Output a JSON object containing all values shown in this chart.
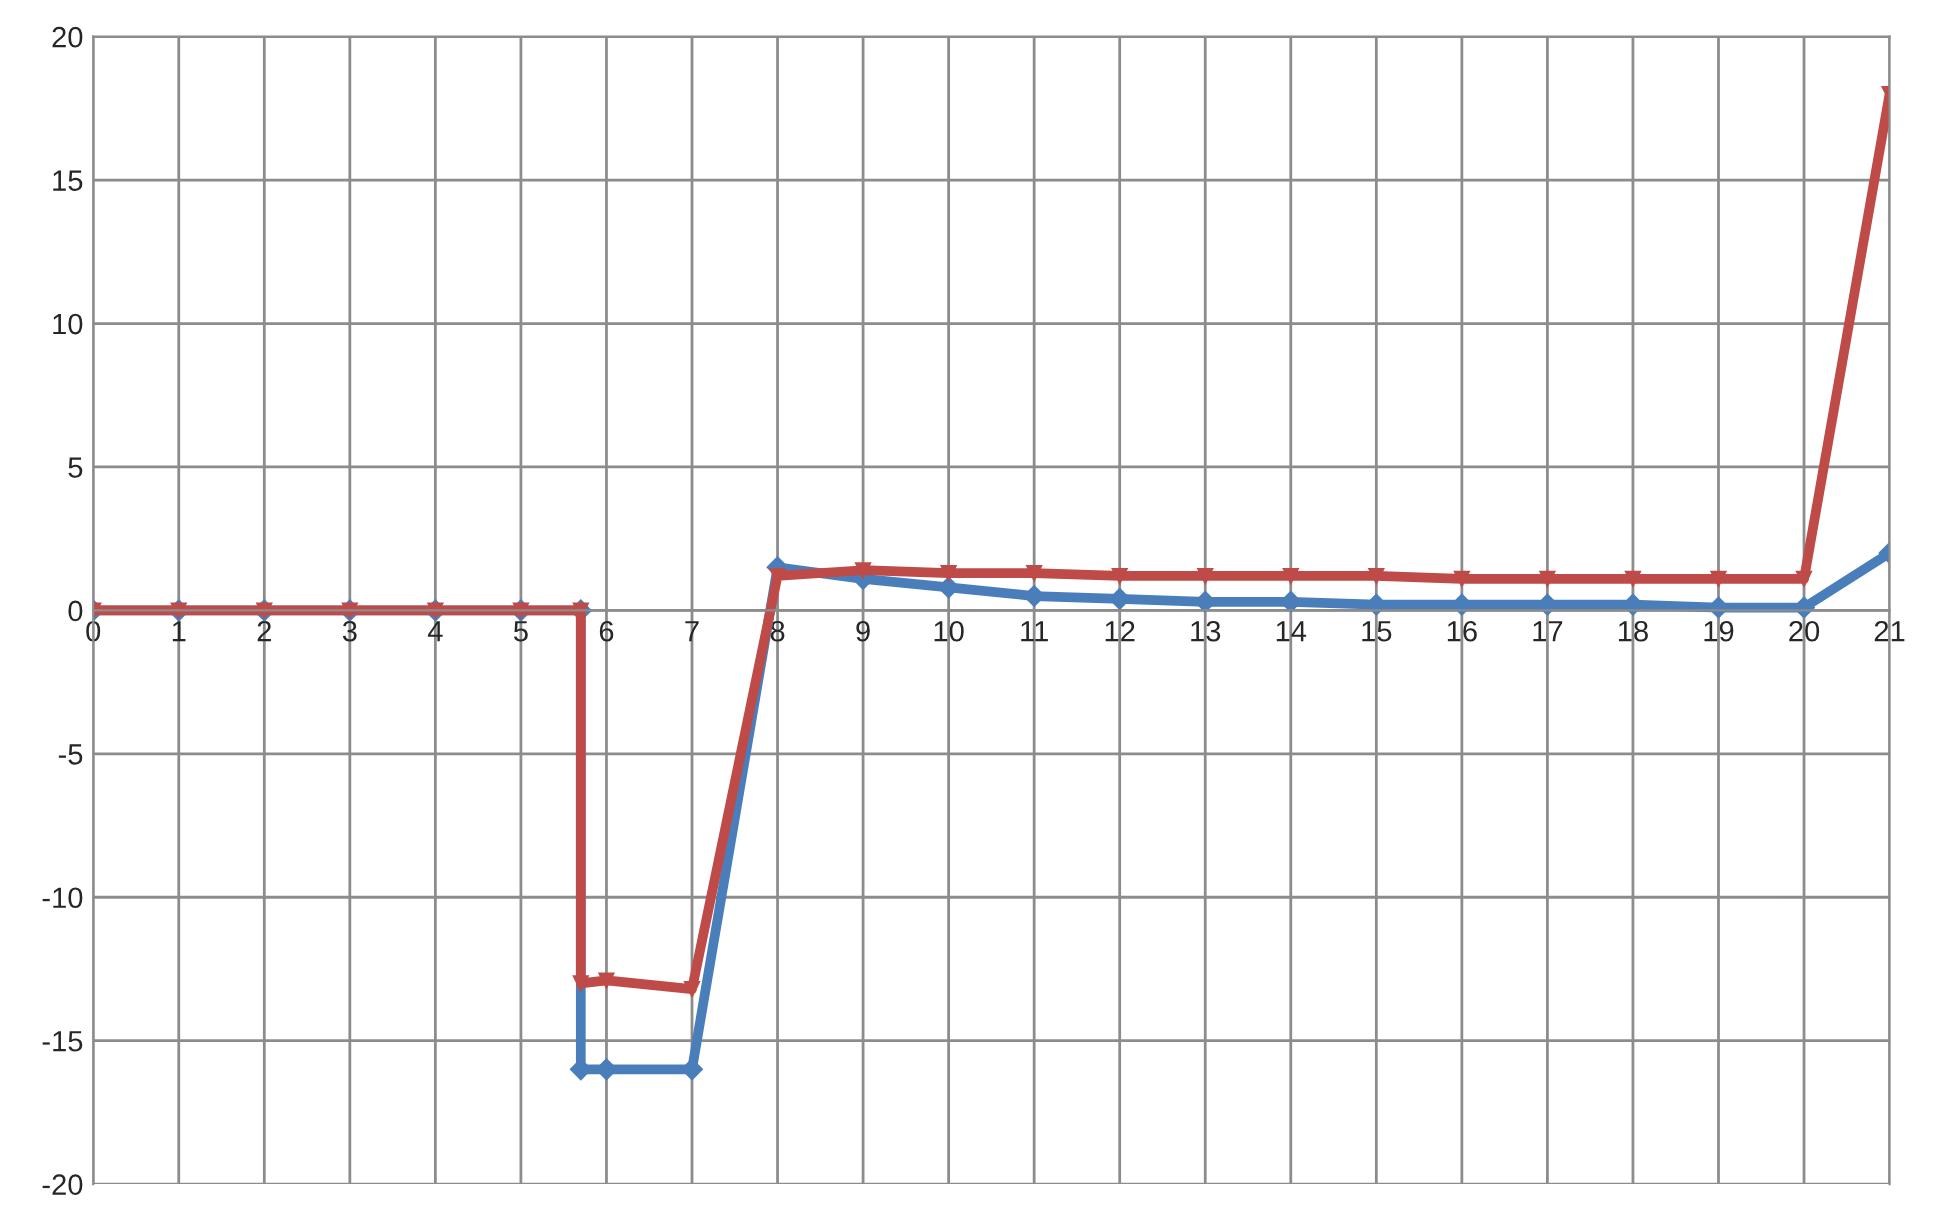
{
  "chart_data": {
    "type": "line",
    "xlim": [
      0,
      21
    ],
    "xticks": [
      0,
      1,
      2,
      3,
      4,
      5,
      6,
      7,
      8,
      9,
      10,
      11,
      12,
      13,
      14,
      15,
      16,
      17,
      18,
      19,
      20,
      21
    ],
    "ylim": [
      -20,
      20
    ],
    "yticks": [
      -20,
      -15,
      -10,
      -5,
      0,
      5,
      10,
      15,
      20
    ],
    "grid": true,
    "series": [
      {
        "color": "#4a7ebb",
        "marker": "diamond",
        "x": [
          0,
          1,
          2,
          3,
          4,
          5,
          5.7,
          5.7,
          6,
          7,
          8,
          9,
          10,
          11,
          12,
          13,
          14,
          15,
          16,
          17,
          18,
          19,
          20,
          21
        ],
        "values": [
          0,
          0,
          0,
          0,
          0,
          0,
          0,
          -16,
          -16,
          -16,
          1.5,
          1.1,
          0.8,
          0.5,
          0.4,
          0.3,
          0.3,
          0.2,
          0.2,
          0.2,
          0.2,
          0.1,
          0.1,
          2
        ]
      },
      {
        "color": "#be4b48",
        "marker": "triangle",
        "x": [
          0,
          1,
          2,
          3,
          4,
          5,
          5.7,
          5.7,
          6,
          7,
          8,
          9,
          10,
          11,
          12,
          13,
          14,
          15,
          16,
          17,
          18,
          19,
          20,
          21
        ],
        "values": [
          0,
          0,
          0,
          0,
          0,
          0,
          0,
          -13,
          -12.9,
          -13.2,
          1.2,
          1.4,
          1.3,
          1.3,
          1.2,
          1.2,
          1.2,
          1.2,
          1.1,
          1.1,
          1.1,
          1.1,
          1.1,
          18
        ]
      }
    ]
  }
}
